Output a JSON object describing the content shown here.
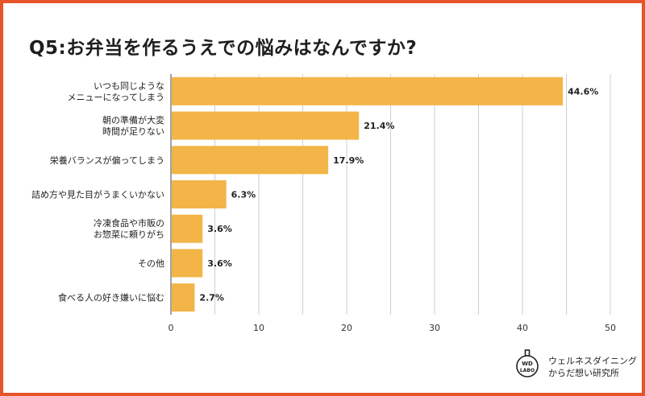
{
  "title": "Q5:お弁当を作るうえでの悩みはなんですか?",
  "colors": {
    "bar": "#f3b548",
    "frame": "#e8542a",
    "grid": "#cfcfcf",
    "axis": "#444444"
  },
  "chart_data": {
    "type": "bar",
    "orientation": "horizontal",
    "categories": [
      [
        "いつも同じような",
        "メニューになってしまう"
      ],
      [
        "朝の準備が大変",
        "時間が足りない"
      ],
      [
        "栄養バランスが偏ってしまう"
      ],
      [
        "詰め方や見た目がうまくいかない"
      ],
      [
        "冷凍食品や市販の",
        "お惣菜に頼りがち"
      ],
      [
        "その他"
      ],
      [
        "食べる人の好き嫌いに悩む"
      ]
    ],
    "values": [
      44.6,
      21.4,
      17.9,
      6.3,
      3.6,
      3.6,
      2.7
    ],
    "value_labels": [
      "44.6%",
      "21.4%",
      "17.9%",
      "6.3%",
      "3.6%",
      "3.6%",
      "2.7%"
    ],
    "xlim": [
      0,
      50
    ],
    "xticks": [
      0,
      10,
      20,
      30,
      40,
      50
    ],
    "grid": true,
    "unit": "%"
  },
  "logo": {
    "badge_text": [
      "WD",
      "LABO"
    ],
    "line1": "ウェルネスダイニング",
    "line2": "からだ想い研究所"
  }
}
